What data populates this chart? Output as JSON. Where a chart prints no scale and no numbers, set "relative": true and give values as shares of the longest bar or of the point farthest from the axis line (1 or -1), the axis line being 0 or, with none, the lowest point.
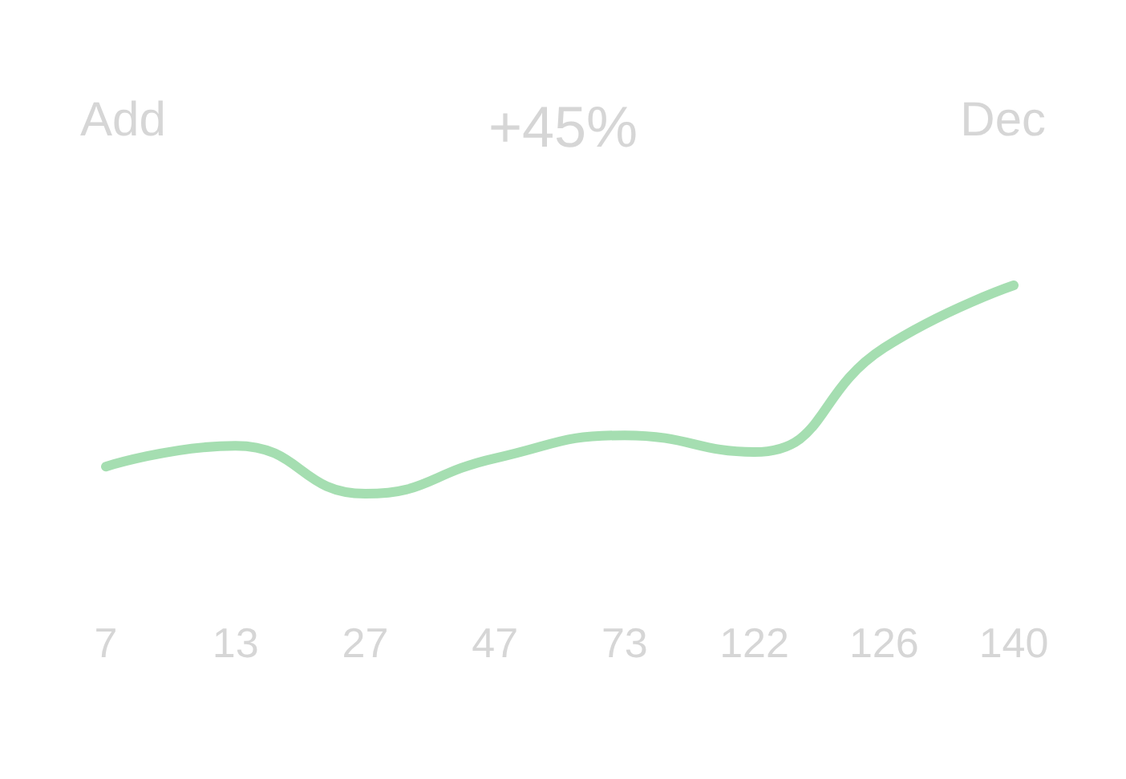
{
  "chart_data": {
    "type": "line",
    "title": "+45%",
    "annotations": [
      "Add",
      "Dec"
    ],
    "relative": true,
    "categories": [
      "7",
      "13",
      "27",
      "47",
      "73",
      "122",
      "126",
      "140"
    ],
    "series": [
      {
        "color": "#a5deb1",
        "values": [
          0.13,
          0.23,
          0,
          0.17,
          0.28,
          0.2,
          0.7,
          1
        ]
      }
    ],
    "grid": false,
    "marker": "none",
    "line_style": "solid"
  }
}
